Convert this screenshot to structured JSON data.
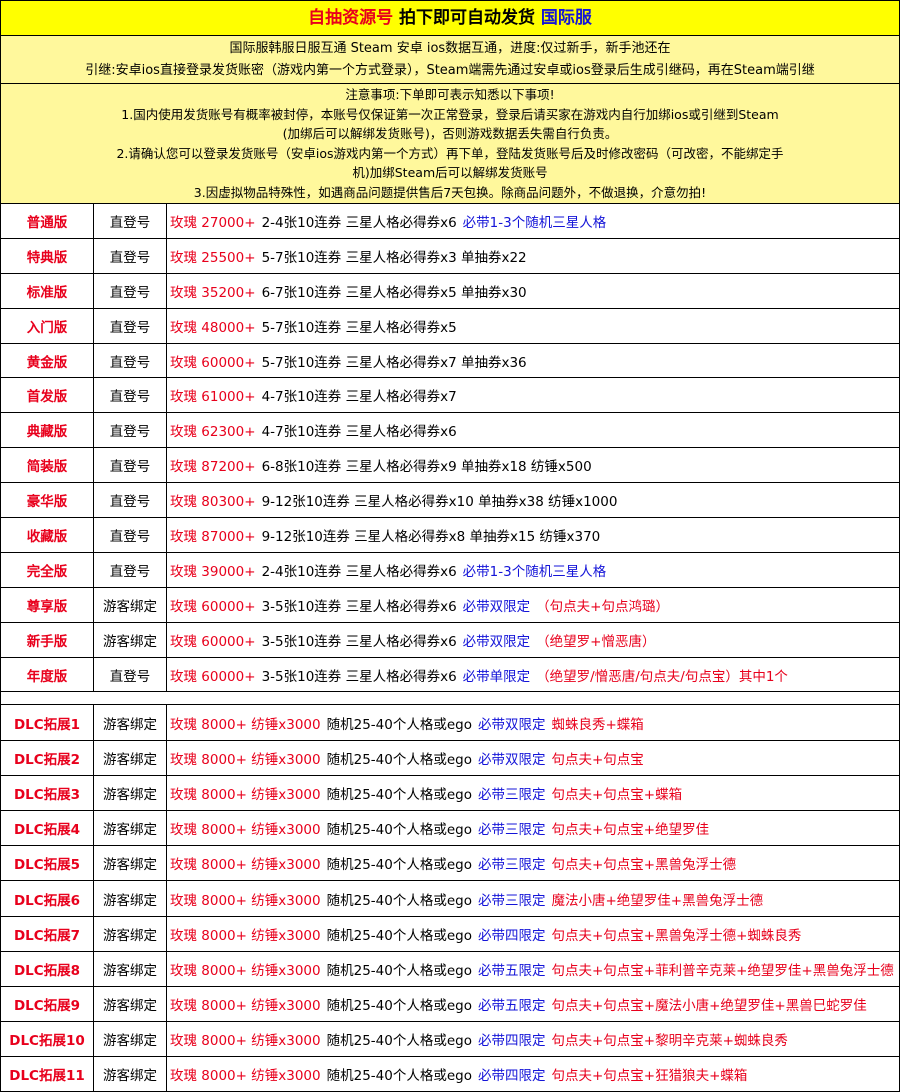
{
  "header": {
    "shop": "自抽资源号",
    "slogan": "拍下即可自动发货",
    "region": "国际服"
  },
  "info": {
    "lines": [
      "国际服韩服日服互通 Steam 安卓 ios数据互通，进度:仅过新手，新手池还在",
      "引继:安卓ios直接登录发货账密（游戏内第一个方式登录），Steam端需先通过安卓或ios登录后生成引继码，再在Steam端引继"
    ]
  },
  "notice": {
    "lines": [
      "注意事项:下单即可表示知悉以下事项!",
      "1.国内使用发货账号有概率被封停，本账号仅保证第一次正常登录，登录后请买家在游戏内自行加绑ios或引继到Steam",
      "(加绑后可以解绑发货账号)，否则游戏数据丢失需自行负责。",
      "2.请确认您可以登录发货账号（安卓ios游戏内第一个方式）再下单，登陆发货账号后及时修改密码（可改密，不能绑定手",
      "机)加绑Steam后可以解绑发货账号",
      "3.因虚拟物品特殊性，如遇商品问题提供售后7天包换。除商品问题外，不做退换，介意勿拍!"
    ]
  },
  "rows": [
    {
      "name": "普通版",
      "type": "直登号",
      "rose": "玫瑰 27000+",
      "detail": "2-4张10连券 三星人格必得券x6",
      "guarantee": "必带1-3个随机三星人格"
    },
    {
      "name": "特典版",
      "type": "直登号",
      "rose": "玫瑰 25500+",
      "detail": "5-7张10连券 三星人格必得券x3 单抽券x22"
    },
    {
      "name": "标准版",
      "type": "直登号",
      "rose": "玫瑰 35200+",
      "detail": "6-7张10连券 三星人格必得券x5 单抽券x30"
    },
    {
      "name": "入门版",
      "type": "直登号",
      "rose": "玫瑰 48000+",
      "detail": "5-7张10连券 三星人格必得券x5"
    },
    {
      "name": "黄金版",
      "type": "直登号",
      "rose": "玫瑰 60000+",
      "detail": "5-7张10连券 三星人格必得券x7 单抽券x36"
    },
    {
      "name": "首发版",
      "type": "直登号",
      "rose": "玫瑰 61000+",
      "detail": "4-7张10连券 三星人格必得券x7"
    },
    {
      "name": "典藏版",
      "type": "直登号",
      "rose": "玫瑰 62300+",
      "detail": "4-7张10连券 三星人格必得券x6"
    },
    {
      "name": "简装版",
      "type": "直登号",
      "rose": "玫瑰 87200+",
      "detail": "6-8张10连券 三星人格必得券x9 单抽券x18 纺锤x500"
    },
    {
      "name": "豪华版",
      "type": "直登号",
      "rose": "玫瑰 80300+",
      "detail": "9-12张10连券 三星人格必得券x10 单抽券x38 纺锤x1000"
    },
    {
      "name": "收藏版",
      "type": "直登号",
      "rose": "玫瑰 87000+",
      "detail": "9-12张10连券 三星人格必得券x8 单抽券x15 纺锤x370"
    },
    {
      "name": "完全版",
      "type": "直登号",
      "rose": "玫瑰 39000+",
      "detail": "2-4张10连券 三星人格必得券x6",
      "guarantee": "必带1-3个随机三星人格"
    },
    {
      "name": "尊享版",
      "type": "游客绑定",
      "rose": "玫瑰 60000+",
      "detail": "3-5张10连券 三星人格必得券x6",
      "guarantee": "必带双限定",
      "extra": "（句点夫+句点鸿璐）"
    },
    {
      "name": "新手版",
      "type": "游客绑定",
      "rose": "玫瑰 60000+",
      "detail": "3-5张10连券 三星人格必得券x6",
      "guarantee": "必带双限定",
      "extra": "（绝望罗+憎恶唐）"
    },
    {
      "name": "年度版",
      "type": "直登号",
      "rose": "玫瑰 60000+",
      "detail": "3-5张10连券 三星人格必得券x6",
      "guarantee": "必带单限定",
      "extra": "（绝望罗/憎恶唐/句点夫/句点宝）其中1个"
    }
  ],
  "dlc": [
    {
      "name": "DLC拓展1",
      "type": "游客绑定",
      "rose": "玫瑰 8000+ 纺锤x3000",
      "detail": "随机25-40个人格或ego",
      "guarantee": "必带双限定",
      "extra": "蜘蛛良秀+蝶箱"
    },
    {
      "name": "DLC拓展2",
      "type": "游客绑定",
      "rose": "玫瑰 8000+ 纺锤x3000",
      "detail": "随机25-40个人格或ego",
      "guarantee": "必带双限定",
      "extra": "句点夫+句点宝"
    },
    {
      "name": "DLC拓展3",
      "type": "游客绑定",
      "rose": "玫瑰 8000+ 纺锤x3000",
      "detail": "随机25-40个人格或ego",
      "guarantee": "必带三限定",
      "extra": "句点夫+句点宝+蝶箱"
    },
    {
      "name": "DLC拓展4",
      "type": "游客绑定",
      "rose": "玫瑰 8000+ 纺锤x3000",
      "detail": "随机25-40个人格或ego",
      "guarantee": "必带三限定",
      "extra": "句点夫+句点宝+绝望罗佳"
    },
    {
      "name": "DLC拓展5",
      "type": "游客绑定",
      "rose": "玫瑰 8000+ 纺锤x3000",
      "detail": "随机25-40个人格或ego",
      "guarantee": "必带三限定",
      "extra": "句点夫+句点宝+黑兽兔浮士德"
    },
    {
      "name": "DLC拓展6",
      "type": "游客绑定",
      "rose": "玫瑰 8000+ 纺锤x3000",
      "detail": "随机25-40个人格或ego",
      "guarantee": "必带三限定",
      "extra": "魔法小唐+绝望罗佳+黑兽兔浮士德"
    },
    {
      "name": "DLC拓展7",
      "type": "游客绑定",
      "rose": "玫瑰 8000+ 纺锤x3000",
      "detail": "随机25-40个人格或ego",
      "guarantee": "必带四限定",
      "extra": "句点夫+句点宝+黑兽兔浮士德+蜘蛛良秀"
    },
    {
      "name": "DLC拓展8",
      "type": "游客绑定",
      "rose": "玫瑰 8000+ 纺锤x3000",
      "detail": "随机25-40个人格或ego",
      "guarantee": "必带五限定",
      "extra": "句点夫+句点宝+菲利普辛克莱+绝望罗佳+黑兽兔浮士德"
    },
    {
      "name": "DLC拓展9",
      "type": "游客绑定",
      "rose": "玫瑰 8000+ 纺锤x3000",
      "detail": "随机25-40个人格或ego",
      "guarantee": "必带五限定",
      "extra": "句点夫+句点宝+魔法小唐+绝望罗佳+黑兽巳蛇罗佳"
    },
    {
      "name": "DLC拓展10",
      "type": "游客绑定",
      "rose": "玫瑰 8000+ 纺锤x3000",
      "detail": "随机25-40个人格或ego",
      "guarantee": "必带四限定",
      "extra": "句点夫+句点宝+黎明辛克莱+蜘蛛良秀"
    },
    {
      "name": "DLC拓展11",
      "type": "游客绑定",
      "rose": "玫瑰 8000+ 纺锤x3000",
      "detail": "随机25-40个人格或ego",
      "guarantee": "必带四限定",
      "extra": "句点夫+句点宝+狂猎狼夫+蝶箱"
    }
  ]
}
